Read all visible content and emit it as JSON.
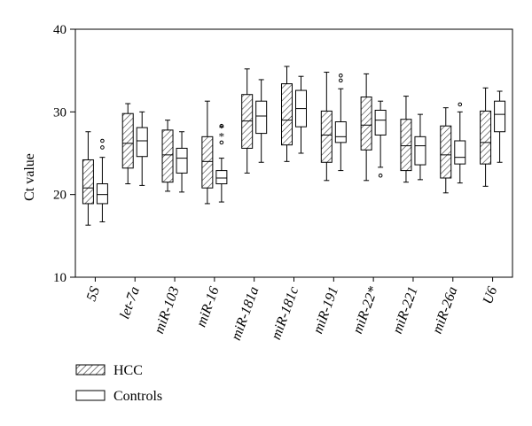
{
  "chart_data": {
    "type": "boxplot",
    "ylabel": "Ct value",
    "ylim": [
      10,
      40
    ],
    "yticks": [
      10,
      20,
      30,
      40
    ],
    "grid": false,
    "legend_position": "bottom-left",
    "categories": [
      "5S",
      "let-7a",
      "miR-103",
      "miR-16",
      "miR-181a",
      "miR-181c",
      "miR-191",
      "miR-22*",
      "miR-221",
      "miR-26a",
      "U6"
    ],
    "series": [
      {
        "name": "HCC",
        "fill": "hatched",
        "boxes": [
          {
            "min": 16.3,
            "q1": 18.9,
            "median": 20.8,
            "q3": 24.2,
            "max": 27.6,
            "outliers": []
          },
          {
            "min": 21.3,
            "q1": 23.2,
            "median": 26.2,
            "q3": 29.8,
            "max": 31.0,
            "outliers": []
          },
          {
            "min": 20.4,
            "q1": 21.5,
            "median": 24.8,
            "q3": 27.8,
            "max": 29.0,
            "outliers": []
          },
          {
            "min": 18.9,
            "q1": 20.8,
            "median": 24.0,
            "q3": 27.0,
            "max": 31.3,
            "outliers": []
          },
          {
            "min": 22.6,
            "q1": 25.6,
            "median": 28.9,
            "q3": 32.1,
            "max": 35.2,
            "outliers": []
          },
          {
            "min": 24.0,
            "q1": 26.0,
            "median": 29.0,
            "q3": 33.4,
            "max": 35.5,
            "outliers": []
          },
          {
            "min": 21.7,
            "q1": 23.9,
            "median": 27.2,
            "q3": 30.1,
            "max": 34.8,
            "outliers": []
          },
          {
            "min": 21.7,
            "q1": 25.4,
            "median": 28.4,
            "q3": 31.8,
            "max": 34.6,
            "outliers": []
          },
          {
            "min": 21.5,
            "q1": 22.9,
            "median": 25.9,
            "q3": 29.1,
            "max": 31.9,
            "outliers": []
          },
          {
            "min": 20.2,
            "q1": 22.0,
            "median": 24.8,
            "q3": 28.3,
            "max": 30.5,
            "outliers": []
          },
          {
            "min": 21.0,
            "q1": 23.7,
            "median": 26.3,
            "q3": 30.1,
            "max": 32.9,
            "outliers": []
          }
        ]
      },
      {
        "name": "Controls",
        "fill": "open",
        "boxes": [
          {
            "min": 16.7,
            "q1": 18.9,
            "median": 20.0,
            "q3": 21.3,
            "max": 24.5,
            "outliers": [
              25.7,
              26.5
            ]
          },
          {
            "min": 21.1,
            "q1": 24.6,
            "median": 26.5,
            "q3": 28.1,
            "max": 30.0,
            "outliers": []
          },
          {
            "min": 20.3,
            "q1": 22.6,
            "median": 24.4,
            "q3": 25.6,
            "max": 27.6,
            "outliers": []
          },
          {
            "min": 19.1,
            "q1": 21.3,
            "median": 22.0,
            "q3": 22.9,
            "max": 24.4,
            "outliers": [
              26.3,
              28.3
            ],
            "extremes": [
              27.1,
              28.1
            ]
          },
          {
            "min": 23.9,
            "q1": 27.4,
            "median": 29.5,
            "q3": 31.3,
            "max": 33.9,
            "outliers": []
          },
          {
            "min": 25.0,
            "q1": 28.2,
            "median": 30.4,
            "q3": 32.6,
            "max": 34.3,
            "outliers": []
          },
          {
            "min": 22.9,
            "q1": 26.3,
            "median": 27.0,
            "q3": 28.8,
            "max": 32.8,
            "outliers": [
              33.8,
              34.4
            ]
          },
          {
            "min": 23.3,
            "q1": 27.2,
            "median": 29.0,
            "q3": 30.2,
            "max": 31.3,
            "outliers": [
              22.3
            ]
          },
          {
            "min": 21.8,
            "q1": 23.6,
            "median": 25.9,
            "q3": 27.0,
            "max": 29.7,
            "outliers": []
          },
          {
            "min": 21.4,
            "q1": 23.7,
            "median": 24.5,
            "q3": 26.5,
            "max": 30.0,
            "outliers": [
              30.9
            ]
          },
          {
            "min": 23.9,
            "q1": 27.6,
            "median": 29.7,
            "q3": 31.3,
            "max": 32.5,
            "outliers": []
          }
        ]
      }
    ]
  }
}
